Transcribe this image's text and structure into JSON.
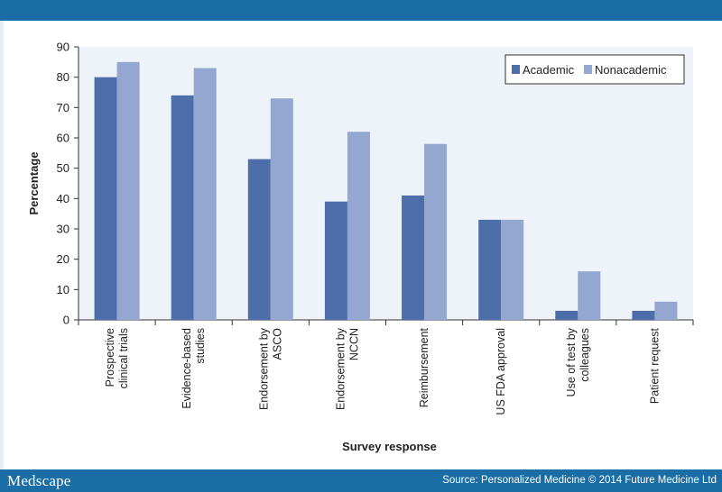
{
  "header": {
    "brand": "Medscape"
  },
  "footer": {
    "source": "Source: Personalized Medicine © 2014 Future Medicine Ltd"
  },
  "colors": {
    "academic": "#4d6ea9",
    "nonacademic": "#93a7d1",
    "banner": "#1a6ea5"
  },
  "chart_data": {
    "type": "bar",
    "title": "",
    "xlabel": "Survey response",
    "ylabel": "Percentage",
    "ylim": [
      0,
      90
    ],
    "yticks": [
      0,
      10,
      20,
      30,
      40,
      50,
      60,
      70,
      80,
      90
    ],
    "categories": [
      [
        "Prospective",
        "clinical trials"
      ],
      [
        "Evidence-based",
        "studies"
      ],
      [
        "Endorsement by",
        "ASCO"
      ],
      [
        "Endorsement by",
        "NCCN"
      ],
      [
        "Reimbursement"
      ],
      [
        "US FDA approval"
      ],
      [
        "Use of test by",
        "colleagues"
      ],
      [
        "Patient request"
      ]
    ],
    "series": [
      {
        "name": "Academic",
        "values": [
          80,
          74,
          53,
          39,
          41,
          33,
          3,
          3
        ]
      },
      {
        "name": "Nonacademic",
        "values": [
          85,
          83,
          73,
          62,
          58,
          33,
          16,
          6
        ]
      }
    ],
    "legend": "top-right"
  }
}
